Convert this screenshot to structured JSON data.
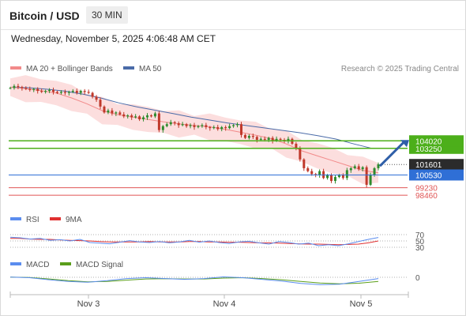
{
  "header": {
    "title": "Bitcoin / USD",
    "interval": "30 MIN",
    "datetime": "Wednesday, November 5, 2025 4:06:48 AM CET"
  },
  "legend": {
    "ma20_label": "MA 20 + Bollinger Bands",
    "ma50_label": "MA 50",
    "credit": "Research © 2025 Trading Central"
  },
  "colors": {
    "ma20": "#f28a8a",
    "ma50": "#4a6ba8",
    "bollinger_fill": "#fbd8d8",
    "green_level": "#4caf1a",
    "blue_level": "#2f6fd6",
    "red_level": "#e05555",
    "candle_up": "#2e8b2e",
    "candle_down": "#c0392b",
    "rsi": "#5b8def",
    "rsi_ma": "#e03030",
    "macd": "#5b8def",
    "macd_signal": "#5a9e1a",
    "arrow": "#2f5fa8"
  },
  "chart_data": [
    {
      "type": "candlestick",
      "panel": "price",
      "x_labels": [
        "Nov 3",
        "Nov 4",
        "Nov 5"
      ],
      "ylim": [
        97500,
        110500
      ],
      "levels": [
        {
          "value": 104020,
          "label": "104020",
          "style": "green-solid",
          "tag": "green"
        },
        {
          "value": 103250,
          "label": "103250",
          "style": "green-solid",
          "tag": "green"
        },
        {
          "value": 101601,
          "label": "101601",
          "style": "dotted",
          "tag": "dark"
        },
        {
          "value": 100530,
          "label": "100530",
          "style": "blue-solid",
          "tag": "blue"
        },
        {
          "value": 99230,
          "label": "99230",
          "style": "red-solid",
          "tag": "red-text"
        },
        {
          "value": 98460,
          "label": "98460",
          "style": "red-solid",
          "tag": "red-text"
        }
      ],
      "close": [
        109420,
        109620,
        109520,
        109420,
        109320,
        109220,
        109320,
        109120,
        109020,
        109120,
        109220,
        109020,
        108920,
        109020,
        108920,
        109020,
        109120,
        108920,
        109120,
        109020,
        108920,
        108520,
        108220,
        107520,
        106920,
        107120,
        106820,
        106920,
        106720,
        106520,
        106620,
        106420,
        106520,
        106220,
        106420,
        106620,
        106520,
        106820,
        105120,
        105520,
        105720,
        105920,
        105820,
        105620,
        105720,
        105520,
        105620,
        105420,
        105520,
        105620,
        105420,
        105320,
        105420,
        105220,
        105420,
        105320,
        105520,
        105620,
        105720,
        104620,
        104320,
        104520,
        104420,
        104120,
        104220,
        104120,
        104320,
        104020,
        104220,
        104120,
        104020,
        104220,
        103720,
        103220,
        102120,
        101220,
        100920,
        100620,
        100520,
        100920,
        100220,
        100520,
        99920,
        100320,
        100520,
        100220,
        101020,
        101220,
        101420,
        101120,
        101320,
        99520,
        100520,
        101220,
        101620
      ],
      "ma20": [
        109500,
        109350,
        109150,
        108900,
        108400,
        107800,
        107100,
        106700,
        106450,
        106200,
        105950,
        105750,
        105600,
        105450,
        105200,
        104900,
        104600,
        104250,
        103700,
        103000,
        102500,
        102000,
        101500,
        101000,
        100750
      ],
      "ma50": [
        109500,
        109450,
        109300,
        109100,
        108800,
        108400,
        107900,
        107500,
        107150,
        106800,
        106450,
        106150,
        105850,
        105600,
        105350,
        105100,
        104850,
        104550,
        104200,
        103700,
        103250
      ]
    },
    {
      "type": "line",
      "panel": "rsi",
      "title": "RSI",
      "series": [
        {
          "name": "RSI",
          "values": [
            62,
            60,
            56,
            58,
            52,
            54,
            50,
            55,
            45,
            43,
            41,
            46,
            51,
            47,
            45,
            48,
            44,
            47,
            52,
            46,
            50,
            45,
            42,
            47,
            49,
            44,
            40,
            48,
            45,
            40,
            43,
            35,
            38,
            35,
            41,
            48,
            55,
            61
          ]
        },
        {
          "name": "9MA",
          "values": [
            58,
            58,
            56,
            55,
            55,
            53,
            52,
            51,
            50,
            48,
            47,
            47,
            47,
            47,
            48,
            47,
            47,
            47,
            48,
            48,
            47,
            47,
            46,
            46,
            45,
            44,
            44,
            43,
            42,
            41,
            40,
            40,
            39,
            38,
            39,
            40,
            44,
            50
          ]
        }
      ],
      "levels": [
        70,
        50,
        30
      ],
      "ylim": [
        0,
        100
      ]
    },
    {
      "type": "line",
      "panel": "macd",
      "series": [
        {
          "name": "MACD",
          "values": [
            0.1,
            -0.2,
            -1.2,
            -2.0,
            -2.4,
            -1.6,
            -0.6,
            -0.2,
            -0.6,
            -1.0,
            -0.6,
            0.2,
            -0.2,
            -1.0,
            -1.8,
            -3.0,
            -3.6,
            -3.4,
            -2.0,
            -0.6
          ]
        },
        {
          "name": "MACD Signal",
          "values": [
            0.1,
            -0.1,
            -0.8,
            -1.6,
            -2.2,
            -2.0,
            -1.4,
            -0.8,
            -0.7,
            -0.8,
            -0.8,
            -0.4,
            -0.2,
            -0.6,
            -1.2,
            -2.0,
            -2.8,
            -3.2,
            -2.9,
            -2.0
          ]
        }
      ],
      "levels": [
        0
      ],
      "ylim": [
        -5,
        3
      ]
    }
  ]
}
